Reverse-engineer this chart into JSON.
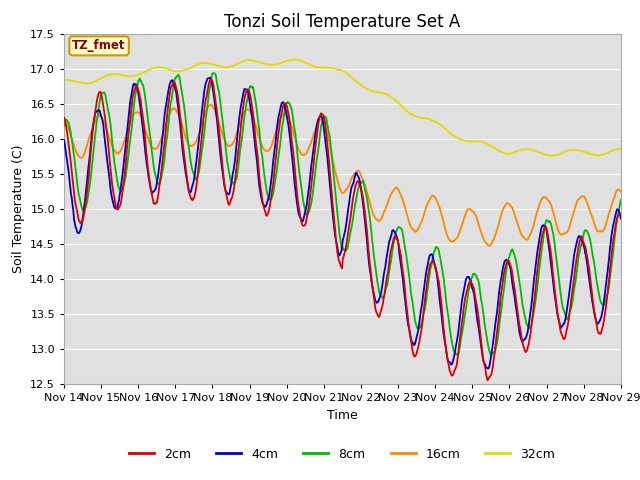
{
  "title": "Tonzi Soil Temperature Set A",
  "xlabel": "Time",
  "ylabel": "Soil Temperature (C)",
  "ylim": [
    12.5,
    17.5
  ],
  "yticks": [
    12.5,
    13.0,
    13.5,
    14.0,
    14.5,
    15.0,
    15.5,
    16.0,
    16.5,
    17.0,
    17.5
  ],
  "xtick_labels": [
    "Nov 14",
    "Nov 15",
    "Nov 16",
    "Nov 17",
    "Nov 18",
    "Nov 19",
    "Nov 20",
    "Nov 21",
    "Nov 22",
    "Nov 23",
    "Nov 24",
    "Nov 25",
    "Nov 26",
    "Nov 27",
    "Nov 28",
    "Nov 29"
  ],
  "colors": {
    "2cm": "#dd0000",
    "4cm": "#0000cc",
    "8cm": "#00bb00",
    "16cm": "#ff8800",
    "32cm": "#dddd00"
  },
  "annotation_text": "TZ_fmet",
  "annotation_color": "#8b0000",
  "annotation_bg": "#ffffcc",
  "annotation_edge": "#cc9900",
  "background_color": "#e0e0e0",
  "grid_color": "#ffffff",
  "title_fontsize": 12,
  "axis_fontsize": 9,
  "tick_fontsize": 8
}
